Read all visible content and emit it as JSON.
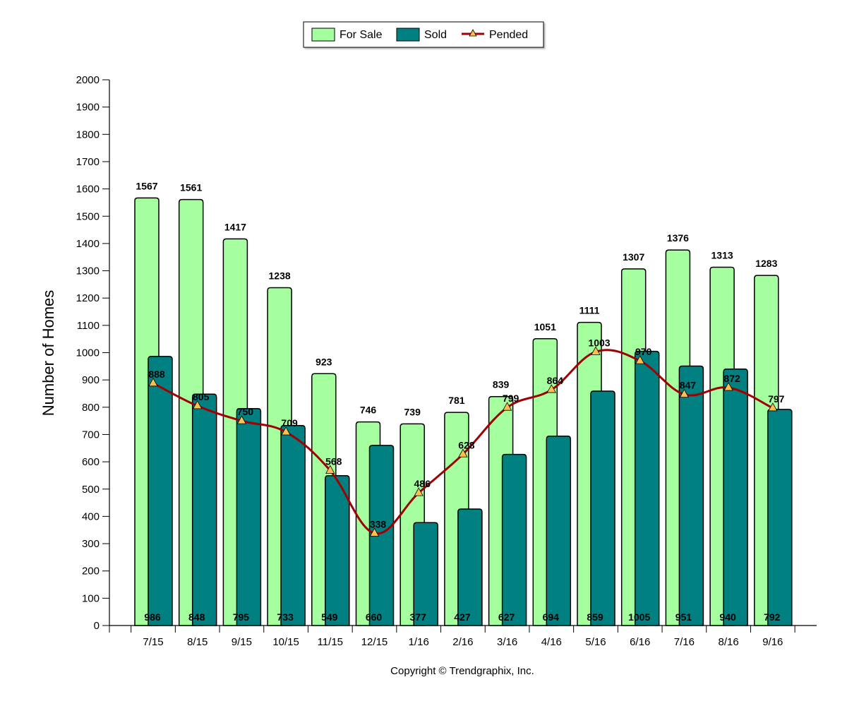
{
  "chart_data": {
    "type": "bar",
    "categories": [
      "7/15",
      "8/15",
      "9/15",
      "10/15",
      "11/15",
      "12/15",
      "1/16",
      "2/16",
      "3/16",
      "4/16",
      "5/16",
      "6/16",
      "7/16",
      "8/16",
      "9/16"
    ],
    "series": [
      {
        "name": "For Sale",
        "type": "bar",
        "color": "#a6ff9f",
        "values": [
          1567,
          1561,
          1417,
          1238,
          923,
          746,
          739,
          781,
          839,
          1051,
          1111,
          1307,
          1376,
          1313,
          1283
        ]
      },
      {
        "name": "Sold",
        "type": "bar",
        "color": "#008080",
        "values": [
          986,
          848,
          795,
          733,
          549,
          660,
          377,
          427,
          627,
          694,
          859,
          1005,
          951,
          940,
          792
        ]
      },
      {
        "name": "Pended",
        "type": "line",
        "color": "#a00000",
        "marker_color": "#ffc04d",
        "values": [
          888,
          805,
          750,
          709,
          568,
          338,
          486,
          628,
          799,
          864,
          1003,
          970,
          847,
          872,
          797
        ]
      }
    ],
    "title": "",
    "xlabel": "",
    "ylabel": "Number of Homes",
    "ylim": [
      0,
      2000
    ],
    "ytick_step": 100,
    "legend_position": "top-center",
    "grid": false
  },
  "footer": {
    "copyright": "Copyright © Trendgraphix, Inc."
  }
}
